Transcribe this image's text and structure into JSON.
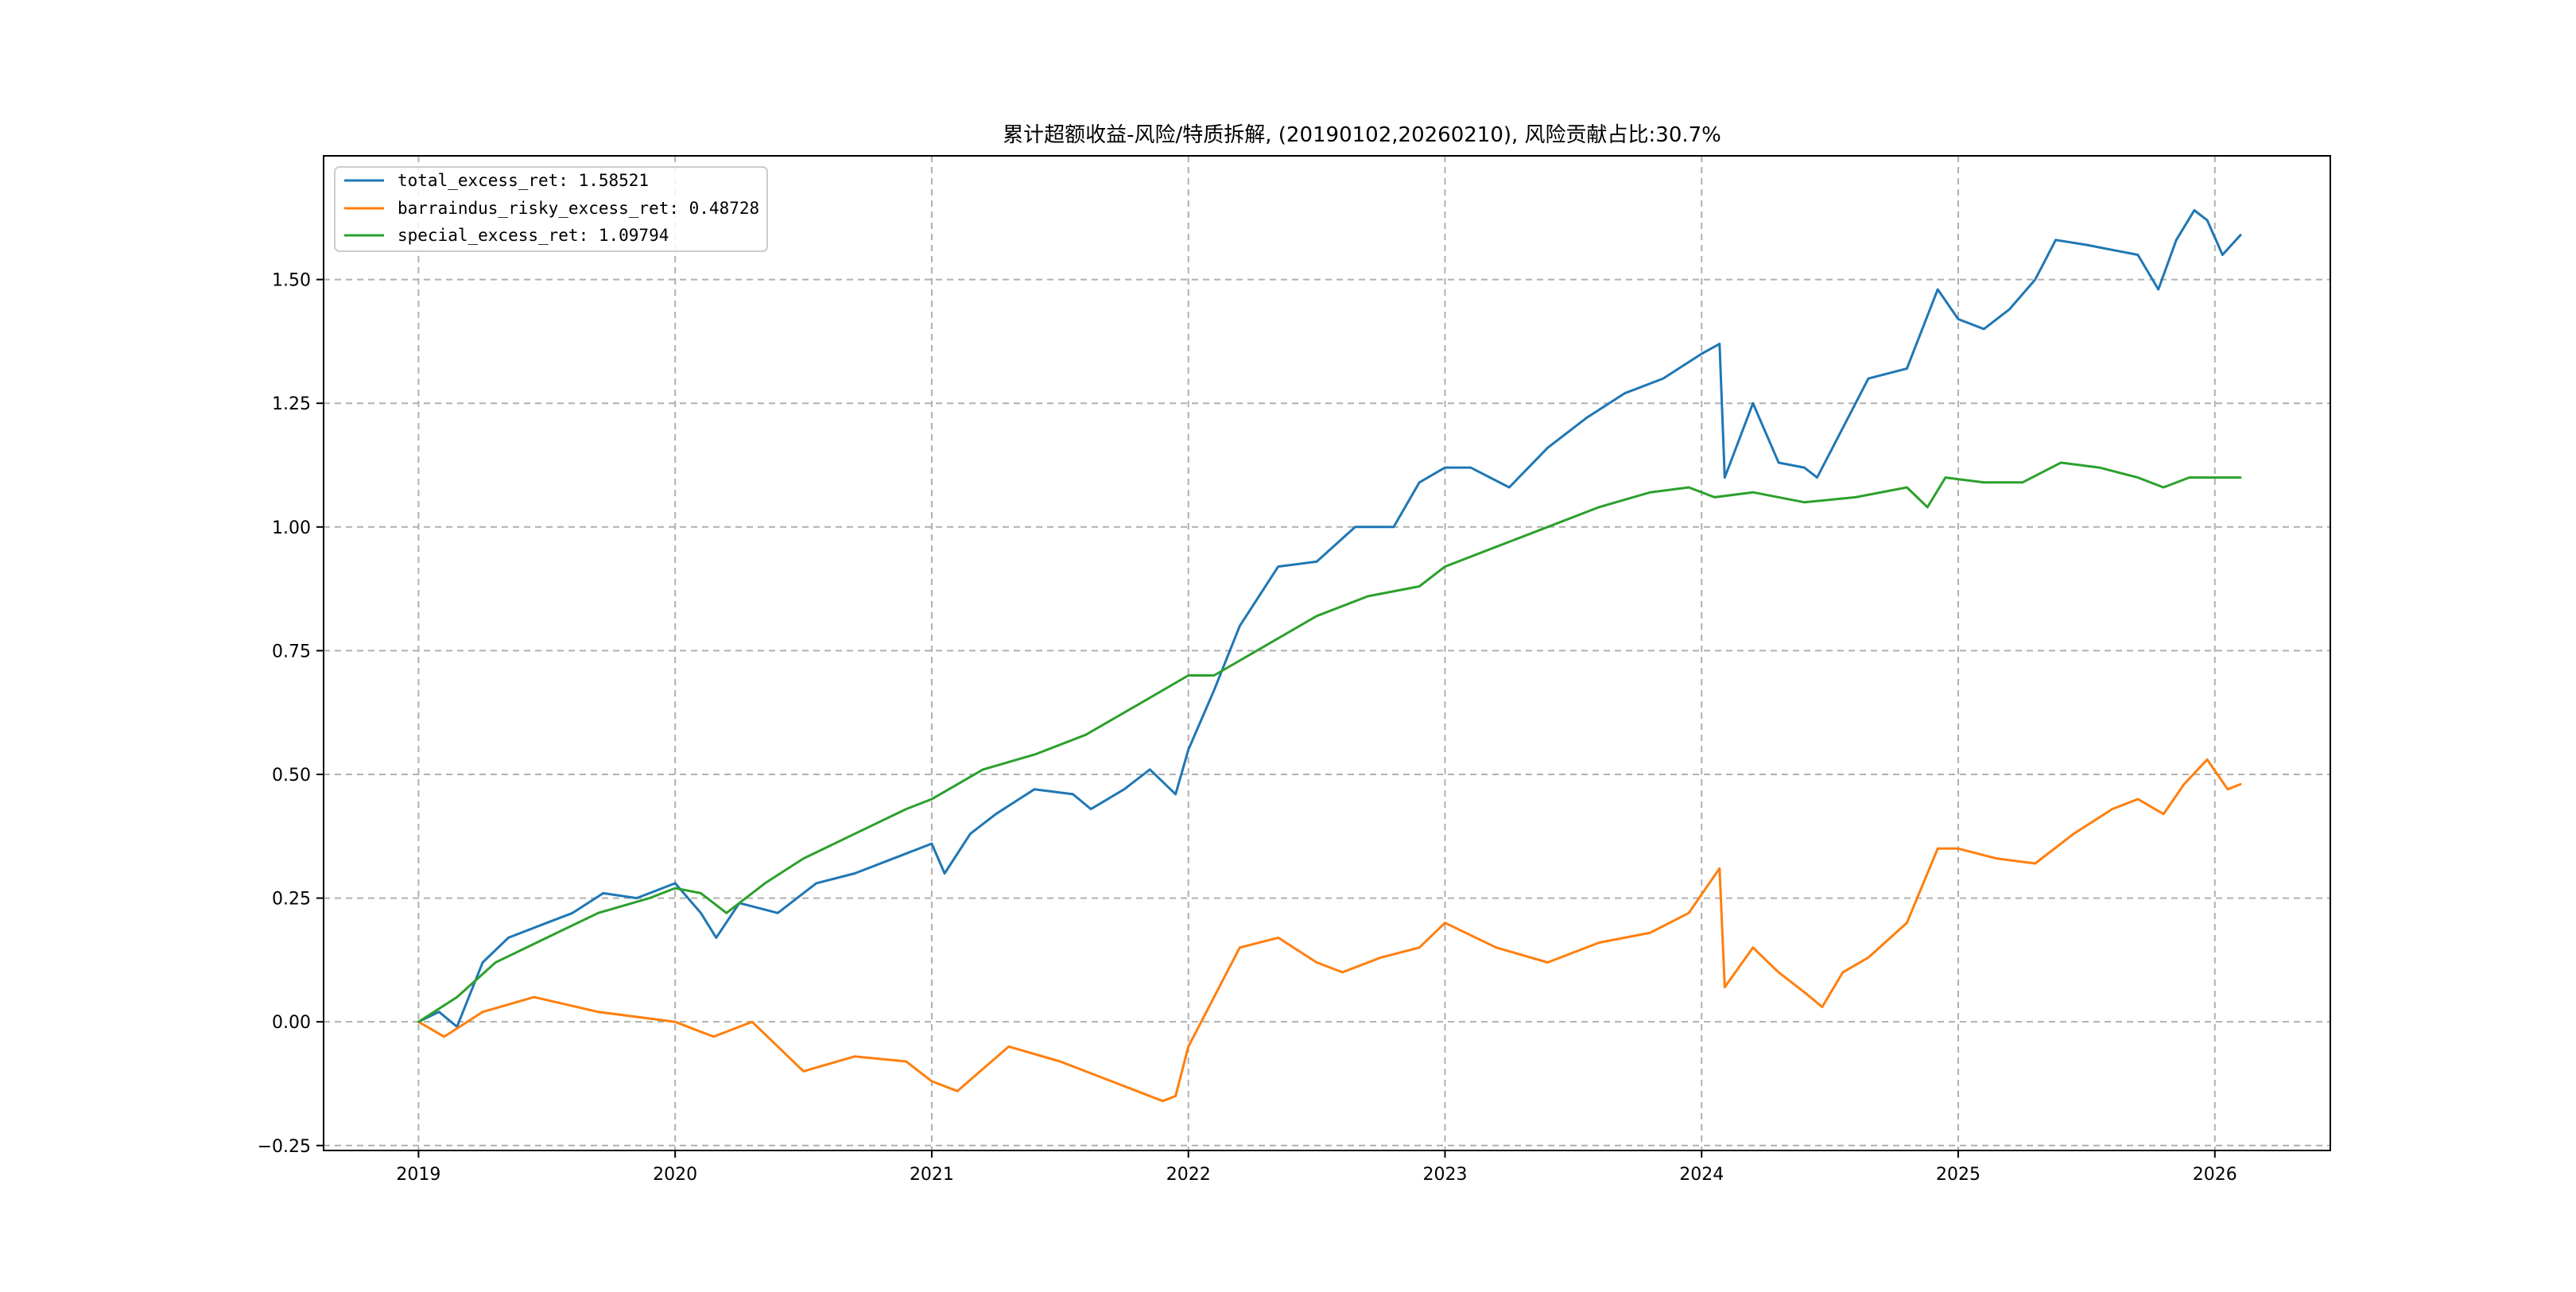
{
  "chart_data": {
    "type": "line",
    "title": "累计超额收益-风险/特质拆解, (20190102,20260210), 风险贡献占比:30.7%",
    "xlabel": "",
    "ylabel": "",
    "x_range": [
      2018.63,
      2026.45
    ],
    "ylim": [
      -0.26,
      1.75
    ],
    "grid": true,
    "legend_position": "top-left",
    "x_ticks": [
      {
        "value": 2019,
        "label": "2019"
      },
      {
        "value": 2020,
        "label": "2020"
      },
      {
        "value": 2021,
        "label": "2021"
      },
      {
        "value": 2022,
        "label": "2022"
      },
      {
        "value": 2023,
        "label": "2023"
      },
      {
        "value": 2024,
        "label": "2024"
      },
      {
        "value": 2025,
        "label": "2025"
      },
      {
        "value": 2026,
        "label": "2026"
      }
    ],
    "y_ticks": [
      {
        "value": -0.25,
        "label": "−0.25"
      },
      {
        "value": 0.0,
        "label": "0.00"
      },
      {
        "value": 0.25,
        "label": "0.25"
      },
      {
        "value": 0.5,
        "label": "0.50"
      },
      {
        "value": 0.75,
        "label": "0.75"
      },
      {
        "value": 1.0,
        "label": "1.00"
      },
      {
        "value": 1.25,
        "label": "1.25"
      },
      {
        "value": 1.5,
        "label": "1.50"
      }
    ],
    "series": [
      {
        "name": "total_excess_ret",
        "legend_label": "total_excess_ret: 1.58521",
        "color": "#1f77b4",
        "x": [
          2019.0,
          2019.08,
          2019.15,
          2019.25,
          2019.35,
          2019.5,
          2019.6,
          2019.72,
          2019.85,
          2020.0,
          2020.1,
          2020.16,
          2020.25,
          2020.4,
          2020.55,
          2020.7,
          2020.85,
          2021.0,
          2021.05,
          2021.15,
          2021.25,
          2021.4,
          2021.55,
          2021.62,
          2021.75,
          2021.85,
          2021.95,
          2022.0,
          2022.1,
          2022.2,
          2022.35,
          2022.5,
          2022.65,
          2022.8,
          2022.9,
          2023.0,
          2023.1,
          2023.25,
          2023.4,
          2023.55,
          2023.7,
          2023.85,
          2024.0,
          2024.07,
          2024.09,
          2024.2,
          2024.3,
          2024.4,
          2024.45,
          2024.55,
          2024.65,
          2024.8,
          2024.92,
          2025.0,
          2025.1,
          2025.2,
          2025.3,
          2025.38,
          2025.5,
          2025.6,
          2025.7,
          2025.78,
          2025.85,
          2025.92,
          2025.97,
          2026.03,
          2026.1
        ],
        "y": [
          0.0,
          0.02,
          -0.01,
          0.12,
          0.17,
          0.2,
          0.22,
          0.26,
          0.25,
          0.28,
          0.22,
          0.17,
          0.24,
          0.22,
          0.28,
          0.3,
          0.33,
          0.36,
          0.3,
          0.38,
          0.42,
          0.47,
          0.46,
          0.43,
          0.47,
          0.51,
          0.46,
          0.55,
          0.67,
          0.8,
          0.92,
          0.93,
          1.0,
          1.0,
          1.09,
          1.12,
          1.12,
          1.08,
          1.16,
          1.22,
          1.27,
          1.3,
          1.35,
          1.37,
          1.1,
          1.25,
          1.13,
          1.12,
          1.1,
          1.2,
          1.3,
          1.32,
          1.48,
          1.42,
          1.4,
          1.44,
          1.5,
          1.58,
          1.57,
          1.56,
          1.55,
          1.48,
          1.58,
          1.64,
          1.62,
          1.55,
          1.59
        ]
      },
      {
        "name": "barraindus_risky_excess_ret",
        "legend_label": "barraindus_risky_excess_ret: 0.48728",
        "color": "#ff7f0e",
        "x": [
          2019.0,
          2019.1,
          2019.25,
          2019.45,
          2019.7,
          2020.0,
          2020.15,
          2020.3,
          2020.5,
          2020.7,
          2020.9,
          2021.0,
          2021.1,
          2021.3,
          2021.5,
          2021.7,
          2021.9,
          2021.95,
          2022.0,
          2022.1,
          2022.2,
          2022.35,
          2022.5,
          2022.6,
          2022.75,
          2022.9,
          2023.0,
          2023.2,
          2023.4,
          2023.6,
          2023.8,
          2023.95,
          2024.07,
          2024.09,
          2024.2,
          2024.3,
          2024.4,
          2024.47,
          2024.55,
          2024.65,
          2024.8,
          2024.92,
          2025.0,
          2025.15,
          2025.3,
          2025.45,
          2025.6,
          2025.7,
          2025.8,
          2025.88,
          2025.97,
          2026.05,
          2026.1
        ],
        "y": [
          0.0,
          -0.03,
          0.02,
          0.05,
          0.02,
          0.0,
          -0.03,
          0.0,
          -0.1,
          -0.07,
          -0.08,
          -0.12,
          -0.14,
          -0.05,
          -0.08,
          -0.12,
          -0.16,
          -0.15,
          -0.05,
          0.05,
          0.15,
          0.17,
          0.12,
          0.1,
          0.13,
          0.15,
          0.2,
          0.15,
          0.12,
          0.16,
          0.18,
          0.22,
          0.31,
          0.07,
          0.15,
          0.1,
          0.06,
          0.03,
          0.1,
          0.13,
          0.2,
          0.35,
          0.35,
          0.33,
          0.32,
          0.38,
          0.43,
          0.45,
          0.42,
          0.48,
          0.53,
          0.47,
          0.48
        ]
      },
      {
        "name": "special_excess_ret",
        "legend_label": "special_excess_ret: 1.09794",
        "color": "#2ca02c",
        "x": [
          2019.0,
          2019.15,
          2019.3,
          2019.5,
          2019.7,
          2019.9,
          2020.0,
          2020.1,
          2020.2,
          2020.35,
          2020.5,
          2020.7,
          2020.9,
          2021.0,
          2021.2,
          2021.4,
          2021.6,
          2021.8,
          2022.0,
          2022.1,
          2022.3,
          2022.5,
          2022.7,
          2022.9,
          2023.0,
          2023.2,
          2023.4,
          2023.6,
          2023.8,
          2023.95,
          2024.05,
          2024.2,
          2024.4,
          2024.6,
          2024.8,
          2024.88,
          2024.95,
          2025.1,
          2025.25,
          2025.4,
          2025.55,
          2025.7,
          2025.8,
          2025.9,
          2026.0,
          2026.1
        ],
        "y": [
          0.0,
          0.05,
          0.12,
          0.17,
          0.22,
          0.25,
          0.27,
          0.26,
          0.22,
          0.28,
          0.33,
          0.38,
          0.43,
          0.45,
          0.51,
          0.54,
          0.58,
          0.64,
          0.7,
          0.7,
          0.76,
          0.82,
          0.86,
          0.88,
          0.92,
          0.96,
          1.0,
          1.04,
          1.07,
          1.08,
          1.06,
          1.07,
          1.05,
          1.06,
          1.08,
          1.04,
          1.1,
          1.09,
          1.09,
          1.13,
          1.12,
          1.1,
          1.08,
          1.1,
          1.1,
          1.1
        ]
      }
    ]
  }
}
